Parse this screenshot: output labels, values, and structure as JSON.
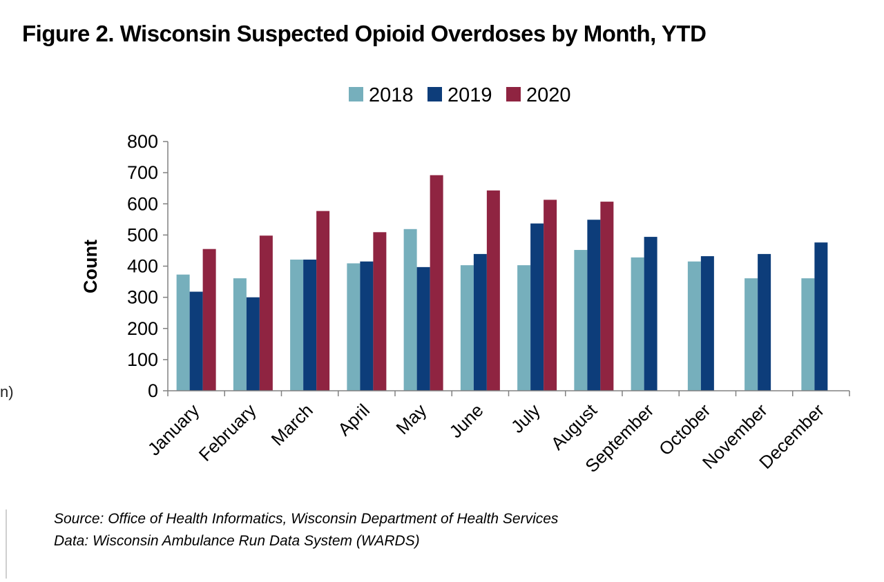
{
  "figure": {
    "title": "Figure 2. Wisconsin Suspected Opioid Overdoses by Month, YTD",
    "source_line": "Source: Office of Health Informatics, Wisconsin Department of Health Services",
    "data_line": "Data: Wisconsin Ambulance Run Data System (WARDS)",
    "edge_fragment": "n)"
  },
  "chart_data": {
    "type": "bar",
    "title": "Figure 2. Wisconsin Suspected Opioid Overdoses by Month, YTD",
    "xlabel": "",
    "ylabel": "Count",
    "ylim": [
      0,
      800
    ],
    "yticks": [
      0,
      100,
      200,
      300,
      400,
      500,
      600,
      700,
      800
    ],
    "grid": false,
    "legend": "top-center",
    "categories": [
      "January",
      "February",
      "March",
      "April",
      "May",
      "June",
      "July",
      "August",
      "September",
      "October",
      "November",
      "December"
    ],
    "series": [
      {
        "name": "2018",
        "color": "#76AFBC",
        "values": [
          373,
          361,
          421,
          409,
          519,
          403,
          403,
          452,
          428,
          415,
          361,
          361
        ]
      },
      {
        "name": "2019",
        "color": "#0D3D7A",
        "values": [
          318,
          300,
          421,
          415,
          397,
          439,
          537,
          549,
          494,
          432,
          439,
          476
        ]
      },
      {
        "name": "2020",
        "color": "#8F2441",
        "values": [
          455,
          498,
          577,
          509,
          692,
          643,
          613,
          607,
          null,
          null,
          null,
          null
        ]
      }
    ]
  }
}
